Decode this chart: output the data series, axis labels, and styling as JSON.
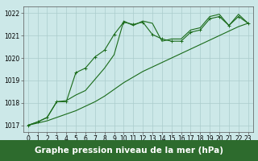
{
  "x": [
    0,
    1,
    2,
    3,
    4,
    5,
    6,
    7,
    8,
    9,
    10,
    11,
    12,
    13,
    14,
    15,
    16,
    17,
    18,
    19,
    20,
    21,
    22,
    23
  ],
  "series_marked": [
    1017.0,
    1017.15,
    1017.35,
    1018.05,
    1018.05,
    1019.35,
    1019.55,
    1020.05,
    1020.35,
    1021.05,
    1021.6,
    1021.5,
    1021.6,
    1021.05,
    1020.85,
    1020.75,
    1020.75,
    1021.15,
    1021.25,
    1021.75,
    1021.85,
    1021.45,
    1021.85,
    1021.55
  ],
  "series_mid": [
    1017.0,
    1017.15,
    1017.35,
    1018.05,
    1018.1,
    1018.35,
    1018.55,
    1019.05,
    1019.55,
    1020.15,
    1021.65,
    1021.45,
    1021.65,
    1021.55,
    1020.75,
    1020.85,
    1020.85,
    1021.25,
    1021.35,
    1021.85,
    1021.95,
    1021.45,
    1021.95,
    1021.55
  ],
  "series_trend": [
    1017.0,
    1017.1,
    1017.2,
    1017.35,
    1017.5,
    1017.65,
    1017.85,
    1018.05,
    1018.3,
    1018.6,
    1018.9,
    1019.15,
    1019.4,
    1019.6,
    1019.8,
    1020.0,
    1020.2,
    1020.4,
    1020.6,
    1020.8,
    1021.0,
    1021.2,
    1021.4,
    1021.55
  ],
  "ylim_min": 1016.7,
  "ylim_max": 1022.3,
  "yticks": [
    1017,
    1018,
    1019,
    1020,
    1021,
    1022
  ],
  "xlim_min": -0.5,
  "xlim_max": 23.5,
  "xticks": [
    0,
    1,
    2,
    3,
    4,
    5,
    6,
    7,
    8,
    9,
    10,
    11,
    12,
    13,
    14,
    15,
    16,
    17,
    18,
    19,
    20,
    21,
    22,
    23
  ],
  "xlabel": "Graphe pression niveau de la mer (hPa)",
  "line_color": "#1a6b1a",
  "bg_color": "#cce8e8",
  "grid_color": "#aacccc",
  "xlabel_bg": "#2d6b2d",
  "xlabel_fg": "#ffffff",
  "tick_fontsize": 5.5,
  "xlabel_fontsize": 7.5
}
